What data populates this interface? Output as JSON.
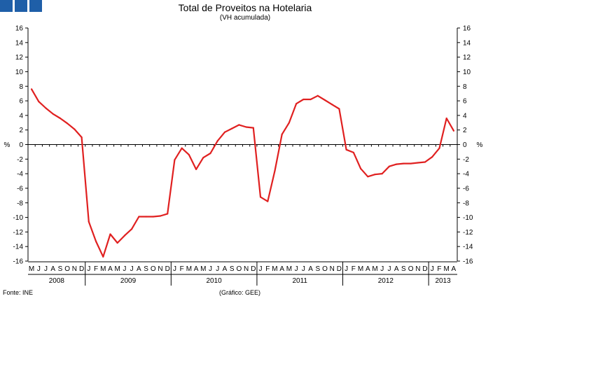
{
  "header": {
    "logo": [
      "logo-square",
      "logo-square",
      "logo-square"
    ]
  },
  "footer": {
    "source": "Fonte: INE",
    "credit": "(Gráfico: GEE)"
  },
  "chart_data": {
    "type": "line",
    "title": "Total de Proveitos na Hotelaria",
    "subtitle": "(VH acumulada)",
    "ylabel_left": "%",
    "ylabel_right": "%",
    "ylim": [
      -16,
      16
    ],
    "yticks": [
      16,
      14,
      12,
      10,
      8,
      6,
      4,
      2,
      0,
      -2,
      -4,
      -6,
      -8,
      -10,
      -12,
      -14,
      -16
    ],
    "month_labels": [
      "M",
      "J",
      "J",
      "A",
      "S",
      "O",
      "N",
      "D",
      "J",
      "F",
      "M",
      "A",
      "M",
      "J",
      "J",
      "A",
      "S",
      "O",
      "N",
      "D",
      "J",
      "F",
      "M",
      "A",
      "M",
      "J",
      "J",
      "A",
      "S",
      "O",
      "N",
      "D",
      "J",
      "F",
      "M",
      "A",
      "M",
      "J",
      "J",
      "A",
      "S",
      "O",
      "N",
      "D",
      "J",
      "F",
      "M",
      "A",
      "M",
      "J",
      "J",
      "A",
      "S",
      "O",
      "N",
      "D",
      "J",
      "F",
      "M",
      "A"
    ],
    "years": [
      {
        "label": "2008",
        "start": 0,
        "count": 8
      },
      {
        "label": "2009",
        "start": 8,
        "count": 12
      },
      {
        "label": "2010",
        "start": 20,
        "count": 12
      },
      {
        "label": "2011",
        "start": 32,
        "count": 12
      },
      {
        "label": "2012",
        "start": 44,
        "count": 12
      },
      {
        "label": "2013",
        "start": 56,
        "count": 4
      }
    ],
    "series": [
      {
        "name": "Total de Proveitos",
        "color": "#e02020",
        "values": [
          7.6,
          5.9,
          5.0,
          4.2,
          3.6,
          2.9,
          2.1,
          1.0,
          -10.6,
          -13.3,
          -15.4,
          -12.3,
          -13.5,
          -12.5,
          -11.6,
          -9.9,
          -9.9,
          -9.9,
          -9.8,
          -9.5,
          -2.1,
          -0.5,
          -1.4,
          -3.4,
          -1.8,
          -1.2,
          0.5,
          1.7,
          2.2,
          2.7,
          2.4,
          2.3,
          -7.2,
          -7.8,
          -3.6,
          1.4,
          3.0,
          5.6,
          6.2,
          6.2,
          6.7,
          6.1,
          5.5,
          4.9,
          -0.7,
          -1.1,
          -3.3,
          -4.4,
          -4.1,
          -4.0,
          -3.0,
          -2.7,
          -2.6,
          -2.6,
          -2.5,
          -2.4,
          -1.7,
          -0.5,
          3.6,
          1.9
        ]
      }
    ]
  }
}
